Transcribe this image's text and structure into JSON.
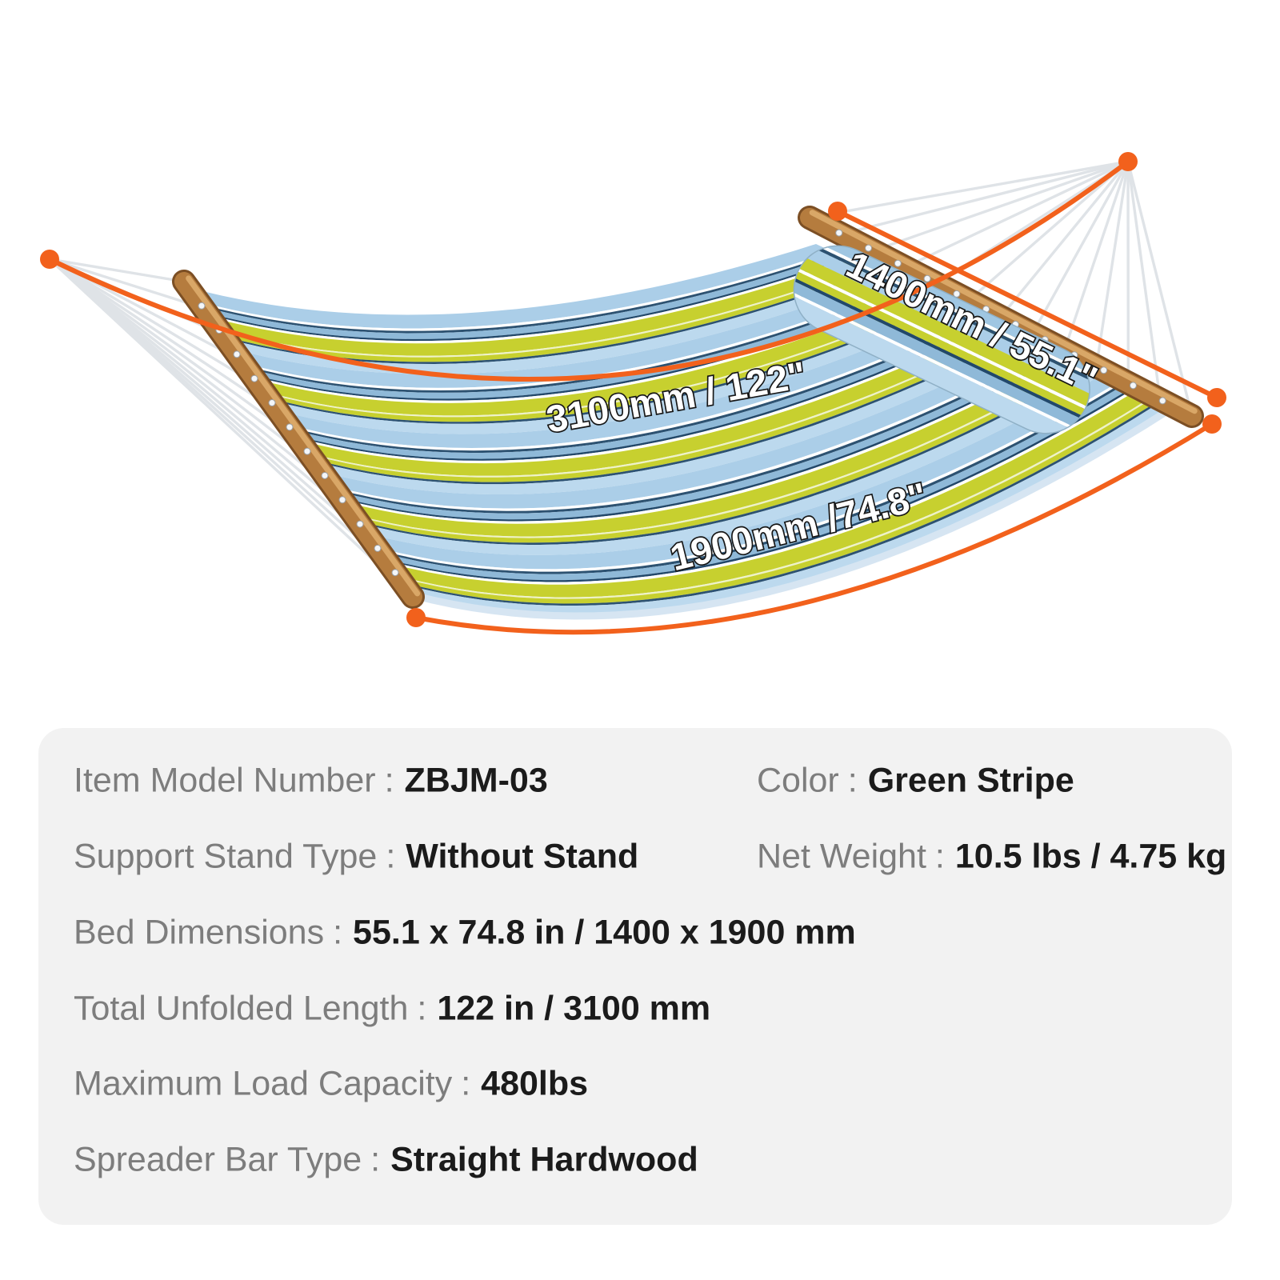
{
  "illustration": {
    "accent_color": "#f2611c",
    "dimension_labels": {
      "total_length": "3100mm / 122\"",
      "bed_width": "1400mm / 55.1\"",
      "bed_length": "1900mm /74.8\""
    }
  },
  "specs": {
    "separator": ":",
    "panel_background": "#f2f2f2",
    "rows": [
      {
        "label": "Item Model Number",
        "value": "ZBJM-03"
      },
      {
        "label": "Color",
        "value": "Green Stripe"
      },
      {
        "label": "Support Stand Type",
        "value": "Without Stand"
      },
      {
        "label": "Net Weight",
        "value": "10.5 lbs / 4.75 kg"
      },
      {
        "label": "Bed Dimensions",
        "value": "55.1 x 74.8 in / 1400 x 1900 mm"
      },
      {
        "label": "Total Unfolded Length",
        "value": "122 in / 3100 mm"
      },
      {
        "label": "Maximum Load Capacity",
        "value": "480lbs"
      },
      {
        "label": "Spreader Bar Type",
        "value": "Straight Hardwood"
      }
    ]
  }
}
